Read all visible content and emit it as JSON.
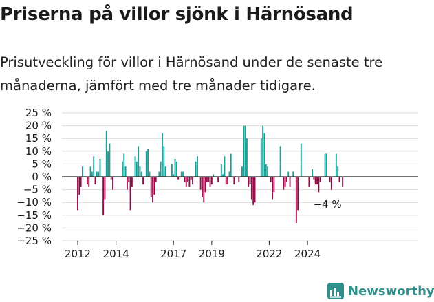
{
  "title": "Priserna på villor sjönk i Härnösand",
  "subtitle": "Prisutveckling för villor i Härnösand under de senaste tre månaderna, jämfört med tre månader tidigare.",
  "brand": {
    "name": "Newsworthy",
    "logo_icon": "bar-chart-icon"
  },
  "colors": {
    "positive": "#1f9e97",
    "negative": "#960a48",
    "text": "#1a1a1a",
    "grid": "#d9d9d9",
    "zero": "#222222",
    "brand": "#2f8f8a"
  },
  "chart_data": {
    "type": "bar",
    "title": "Priserna på villor sjönk i Härnösand",
    "xlabel": "",
    "ylabel": "",
    "ylim": [
      -25,
      25
    ],
    "yticks": [
      25,
      20,
      15,
      10,
      5,
      0,
      -5,
      -10,
      -15,
      -20,
      -25
    ],
    "ytick_labels": [
      "25 %",
      "20 %",
      "15 %",
      "10 %",
      "5 %",
      "0 %",
      "−5 %",
      "−10 %",
      "−15 %",
      "−20 %",
      "−25 %"
    ],
    "x_start": "2012-01",
    "frequency": "monthly",
    "xticks": [
      {
        "label": "2012",
        "date": "2012-01"
      },
      {
        "label": "2014",
        "date": "2014-01"
      },
      {
        "label": "2017",
        "date": "2017-01"
      },
      {
        "label": "2019",
        "date": "2019-01"
      },
      {
        "label": "2022",
        "date": "2022-01"
      },
      {
        "label": "2024",
        "date": "2024-01"
      }
    ],
    "grid": true,
    "annotation": {
      "text": "−4 %",
      "date": "2024-12",
      "value": -4
    },
    "values": [
      -13,
      -7,
      -4,
      4,
      0,
      0,
      -3,
      -4,
      4,
      2,
      8,
      -3,
      2,
      2,
      7,
      0,
      -15,
      -9,
      18,
      10,
      13,
      -1,
      -5,
      0,
      0,
      0,
      0,
      0,
      6,
      9,
      4,
      -5,
      -2,
      -13,
      -4,
      0,
      8,
      6,
      12,
      4,
      2,
      -3,
      0,
      10,
      11,
      2,
      -8,
      -10,
      -7,
      -2,
      0,
      2,
      6,
      17,
      12,
      4,
      0,
      0,
      0,
      5,
      1,
      7,
      6,
      -1,
      0,
      2,
      2,
      -2,
      -4,
      -2,
      -4,
      -1,
      -3,
      0,
      6,
      8,
      0,
      -5,
      -8,
      -10,
      -6,
      -2,
      -2,
      -4,
      -3,
      1,
      0,
      0,
      -2,
      0,
      5,
      1,
      8,
      -3,
      -3,
      2,
      9,
      0,
      -3,
      0,
      0,
      -2,
      0,
      4,
      20,
      20,
      15,
      -4,
      -3,
      -9,
      -11,
      -10,
      0,
      0,
      0,
      15,
      20,
      17,
      5,
      4,
      0,
      -2,
      -9,
      -6,
      0,
      0,
      0,
      12,
      0,
      -5,
      -4,
      -2,
      2,
      -4,
      0,
      2,
      0,
      -18,
      -13,
      0,
      13,
      0,
      0,
      0,
      0,
      -4,
      0,
      3,
      -1,
      -3,
      -3,
      -6,
      -2,
      0,
      0,
      9,
      9,
      0,
      -2,
      -5,
      0,
      0,
      9,
      4,
      -2,
      0,
      -4
    ]
  }
}
